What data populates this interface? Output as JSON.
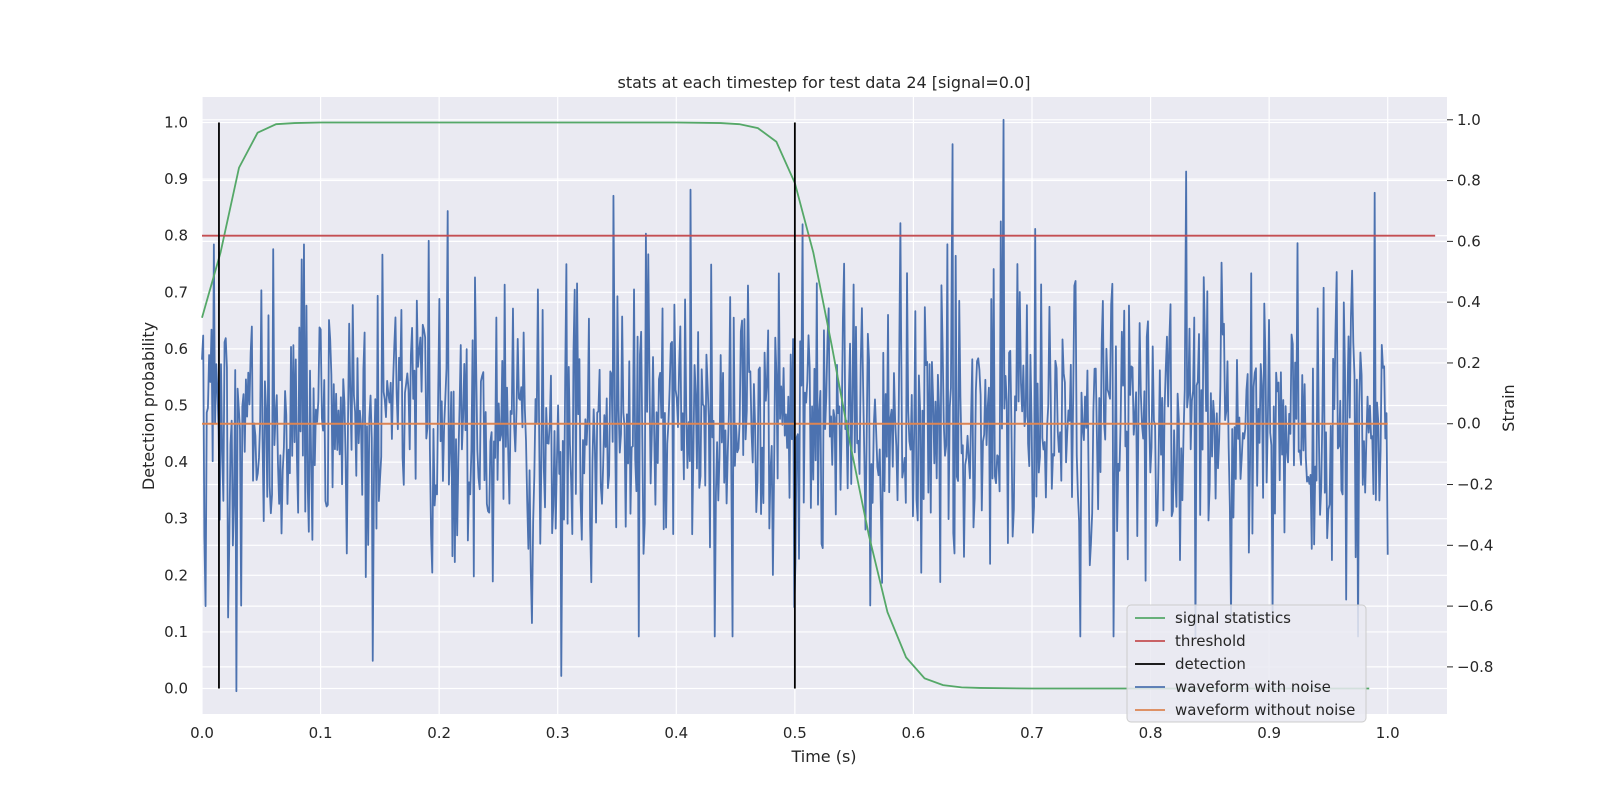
{
  "chart_data": {
    "type": "line",
    "title": "stats at each timestep for test data 24 [signal=0.0]",
    "xlabel": "Time (s)",
    "ylabel": "Detection probability",
    "ylabel_right": "Strain",
    "xlim": [
      0.0,
      1.05
    ],
    "ylim": [
      -0.045,
      1.045
    ],
    "ylim_right": [
      -0.955,
      1.075
    ],
    "grid": true,
    "x_ticks": [
      0.0,
      0.1,
      0.2,
      0.3,
      0.4,
      0.5,
      0.6,
      0.7,
      0.8,
      0.9,
      1.0
    ],
    "x_tick_labels": [
      "0.0",
      "0.1",
      "0.2",
      "0.3",
      "0.4",
      "0.5",
      "0.6",
      "0.7",
      "0.8",
      "0.9",
      "1.0"
    ],
    "y_ticks": [
      0.0,
      0.1,
      0.2,
      0.3,
      0.4,
      0.5,
      0.6,
      0.7,
      0.8,
      0.9,
      1.0
    ],
    "y_tick_labels": [
      "0.0",
      "0.1",
      "0.2",
      "0.3",
      "0.4",
      "0.5",
      "0.6",
      "0.7",
      "0.8",
      "0.9",
      "1.0"
    ],
    "y_right_ticks": [
      -0.8,
      -0.6,
      -0.4,
      -0.2,
      0.0,
      0.2,
      0.4,
      0.6,
      0.8,
      1.0
    ],
    "y_right_tick_labels": [
      "−0.8",
      "−0.6",
      "−0.4",
      "−0.2",
      "0.0",
      "0.2",
      "0.4",
      "0.6",
      "0.8",
      "1.0"
    ],
    "legend_position": "lower-right",
    "series": [
      {
        "name": "signal statistics",
        "axis": "left",
        "color": "#55a868",
        "x": [
          0.0,
          0.0156,
          0.0312,
          0.0469,
          0.0625,
          0.0781,
          0.1,
          0.2,
          0.3,
          0.4,
          0.4375,
          0.4531,
          0.4688,
          0.4844,
          0.5,
          0.5156,
          0.5312,
          0.5469,
          0.5625,
          0.5781,
          0.5938,
          0.6094,
          0.625,
          0.6406,
          0.6562,
          0.7,
          0.8,
          0.9,
          0.9844
        ],
        "y": [
          0.655,
          0.77,
          0.92,
          0.982,
          0.997,
          0.999,
          1.0,
          1.0,
          1.0,
          1.0,
          0.999,
          0.997,
          0.99,
          0.966,
          0.893,
          0.77,
          0.605,
          0.43,
          0.27,
          0.135,
          0.055,
          0.018,
          0.006,
          0.002,
          0.001,
          0.0,
          0.0,
          0.0,
          0.0
        ]
      },
      {
        "name": "threshold",
        "axis": "left",
        "color": "#c44e52",
        "x": [
          0.0,
          1.04
        ],
        "y": [
          0.8,
          0.8
        ]
      },
      {
        "name": "detection",
        "axis": "left",
        "color": "#000000",
        "x": [
          0.0143,
          0.5
        ],
        "y": [
          1.0,
          1.0
        ]
      },
      {
        "name": "waveform with noise",
        "axis": "right",
        "color": "#4c72b0",
        "peaks": [
          {
            "x": 0.003,
            "y": -0.6
          },
          {
            "x": 0.01,
            "y": 0.59
          },
          {
            "x": 0.029,
            "y": -0.88
          },
          {
            "x": 0.086,
            "y": 0.59
          },
          {
            "x": 0.144,
            "y": -0.78
          },
          {
            "x": 0.303,
            "y": -0.83
          },
          {
            "x": 0.347,
            "y": 0.75
          },
          {
            "x": 0.412,
            "y": 0.77
          },
          {
            "x": 0.589,
            "y": 0.66
          },
          {
            "x": 0.633,
            "y": 0.92
          },
          {
            "x": 0.676,
            "y": 1.0
          },
          {
            "x": 0.83,
            "y": 0.83
          },
          {
            "x": 0.989,
            "y": 0.76
          }
        ]
      },
      {
        "name": "waveform without noise",
        "axis": "right",
        "color": "#dd8452",
        "x": [
          0.0,
          1.0
        ],
        "y": [
          0.0,
          0.0
        ]
      }
    ]
  }
}
